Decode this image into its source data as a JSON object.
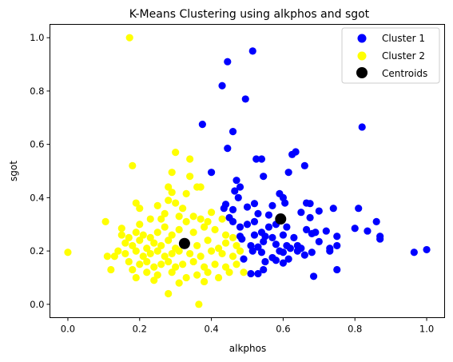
{
  "chart_data": {
    "type": "scatter",
    "title": "K-Means Clustering using alkphos and sgot",
    "xlabel": "alkphos",
    "ylabel": "sgot",
    "xlim": [
      -0.05,
      1.05
    ],
    "ylim": [
      -0.05,
      1.05
    ],
    "xticks": [
      0.0,
      0.2,
      0.4,
      0.6,
      0.8,
      1.0
    ],
    "xtick_labels": [
      "0.0",
      "0.2",
      "0.4",
      "0.6",
      "0.8",
      "1.0"
    ],
    "yticks": [
      0.0,
      0.2,
      0.4,
      0.6,
      0.8,
      1.0
    ],
    "ytick_labels": [
      "0.0",
      "0.2",
      "0.4",
      "0.6",
      "0.8",
      "1.0"
    ],
    "grid": false,
    "legend_position": "top-right",
    "series": [
      {
        "name": "Cluster 1",
        "color": "#0000ff",
        "marker": "circle",
        "points": [
          [
            0.515,
            0.95
          ],
          [
            0.445,
            0.91
          ],
          [
            0.43,
            0.82
          ],
          [
            0.495,
            0.77
          ],
          [
            0.82,
            0.665
          ],
          [
            0.375,
            0.675
          ],
          [
            0.46,
            0.648
          ],
          [
            0.445,
            0.585
          ],
          [
            0.635,
            0.572
          ],
          [
            0.625,
            0.562
          ],
          [
            0.54,
            0.545
          ],
          [
            0.525,
            0.545
          ],
          [
            0.66,
            0.52
          ],
          [
            0.4,
            0.495
          ],
          [
            0.545,
            0.48
          ],
          [
            0.615,
            0.495
          ],
          [
            0.47,
            0.465
          ],
          [
            0.48,
            0.44
          ],
          [
            0.465,
            0.425
          ],
          [
            0.475,
            0.4
          ],
          [
            0.59,
            0.415
          ],
          [
            0.6,
            0.4
          ],
          [
            0.605,
            0.38
          ],
          [
            0.665,
            0.38
          ],
          [
            0.675,
            0.378
          ],
          [
            0.44,
            0.375
          ],
          [
            0.435,
            0.36
          ],
          [
            0.46,
            0.355
          ],
          [
            0.52,
            0.378
          ],
          [
            0.5,
            0.365
          ],
          [
            0.57,
            0.37
          ],
          [
            0.74,
            0.36
          ],
          [
            0.81,
            0.36
          ],
          [
            0.7,
            0.35
          ],
          [
            0.45,
            0.325
          ],
          [
            0.46,
            0.31
          ],
          [
            0.53,
            0.34
          ],
          [
            0.56,
            0.335
          ],
          [
            0.65,
            0.345
          ],
          [
            0.72,
            0.275
          ],
          [
            0.675,
            0.325
          ],
          [
            0.48,
            0.29
          ],
          [
            0.5,
            0.3
          ],
          [
            0.52,
            0.31
          ],
          [
            0.56,
            0.29
          ],
          [
            0.58,
            0.3
          ],
          [
            0.61,
            0.29
          ],
          [
            0.665,
            0.28
          ],
          [
            0.69,
            0.27
          ],
          [
            0.8,
            0.285
          ],
          [
            0.835,
            0.275
          ],
          [
            0.86,
            0.31
          ],
          [
            0.87,
            0.255
          ],
          [
            0.87,
            0.245
          ],
          [
            0.75,
            0.255
          ],
          [
            0.48,
            0.255
          ],
          [
            0.485,
            0.245
          ],
          [
            0.52,
            0.26
          ],
          [
            0.54,
            0.27
          ],
          [
            0.55,
            0.255
          ],
          [
            0.57,
            0.25
          ],
          [
            0.6,
            0.26
          ],
          [
            0.63,
            0.25
          ],
          [
            0.68,
            0.265
          ],
          [
            0.7,
            0.235
          ],
          [
            0.51,
            0.22
          ],
          [
            0.53,
            0.215
          ],
          [
            0.545,
            0.235
          ],
          [
            0.58,
            0.225
          ],
          [
            0.61,
            0.22
          ],
          [
            0.64,
            0.22
          ],
          [
            0.65,
            0.21
          ],
          [
            0.73,
            0.21
          ],
          [
            0.73,
            0.2
          ],
          [
            0.75,
            0.22
          ],
          [
            0.515,
            0.2
          ],
          [
            0.54,
            0.195
          ],
          [
            0.57,
            0.175
          ],
          [
            0.59,
            0.2
          ],
          [
            0.6,
            0.195
          ],
          [
            0.62,
            0.21
          ],
          [
            0.66,
            0.185
          ],
          [
            0.68,
            0.195
          ],
          [
            0.49,
            0.17
          ],
          [
            0.55,
            0.16
          ],
          [
            0.58,
            0.165
          ],
          [
            0.6,
            0.155
          ],
          [
            0.615,
            0.17
          ],
          [
            0.64,
            0.2
          ],
          [
            0.51,
            0.115
          ],
          [
            0.53,
            0.115
          ],
          [
            0.545,
            0.13
          ],
          [
            0.685,
            0.105
          ],
          [
            0.75,
            0.13
          ],
          [
            0.965,
            0.195
          ],
          [
            1.0,
            0.205
          ]
        ]
      },
      {
        "name": "Cluster 2",
        "color": "#ffff00",
        "marker": "circle",
        "points": [
          [
            0.172,
            1.0
          ],
          [
            0.3,
            0.57
          ],
          [
            0.34,
            0.545
          ],
          [
            0.18,
            0.52
          ],
          [
            0.29,
            0.495
          ],
          [
            0.34,
            0.48
          ],
          [
            0.28,
            0.44
          ],
          [
            0.36,
            0.44
          ],
          [
            0.37,
            0.44
          ],
          [
            0.29,
            0.42
          ],
          [
            0.33,
            0.415
          ],
          [
            0.19,
            0.38
          ],
          [
            0.2,
            0.36
          ],
          [
            0.25,
            0.37
          ],
          [
            0.28,
            0.39
          ],
          [
            0.3,
            0.38
          ],
          [
            0.32,
            0.36
          ],
          [
            0.4,
            0.345
          ],
          [
            0.105,
            0.31
          ],
          [
            0.15,
            0.285
          ],
          [
            0.2,
            0.3
          ],
          [
            0.23,
            0.32
          ],
          [
            0.26,
            0.32
          ],
          [
            0.27,
            0.34
          ],
          [
            0.31,
            0.33
          ],
          [
            0.33,
            0.31
          ],
          [
            0.35,
            0.33
          ],
          [
            0.37,
            0.32
          ],
          [
            0.39,
            0.31
          ],
          [
            0.43,
            0.32
          ],
          [
            0.15,
            0.26
          ],
          [
            0.17,
            0.25
          ],
          [
            0.19,
            0.27
          ],
          [
            0.21,
            0.26
          ],
          [
            0.23,
            0.25
          ],
          [
            0.25,
            0.27
          ],
          [
            0.27,
            0.29
          ],
          [
            0.29,
            0.26
          ],
          [
            0.31,
            0.28
          ],
          [
            0.35,
            0.27
          ],
          [
            0.38,
            0.29
          ],
          [
            0.41,
            0.28
          ],
          [
            0.44,
            0.26
          ],
          [
            0.46,
            0.25
          ],
          [
            0.16,
            0.23
          ],
          [
            0.18,
            0.22
          ],
          [
            0.2,
            0.24
          ],
          [
            0.22,
            0.21
          ],
          [
            0.24,
            0.23
          ],
          [
            0.26,
            0.22
          ],
          [
            0.28,
            0.24
          ],
          [
            0.3,
            0.21
          ],
          [
            0.33,
            0.23
          ],
          [
            0.36,
            0.22
          ],
          [
            0.39,
            0.24
          ],
          [
            0.42,
            0.21
          ],
          [
            0.44,
            0.23
          ],
          [
            0.47,
            0.22
          ],
          [
            0.14,
            0.2
          ],
          [
            0.16,
            0.19
          ],
          [
            0.19,
            0.2
          ],
          [
            0.21,
            0.18
          ],
          [
            0.23,
            0.19
          ],
          [
            0.25,
            0.2
          ],
          [
            0.27,
            0.18
          ],
          [
            0.29,
            0.19
          ],
          [
            0.31,
            0.2
          ],
          [
            0.34,
            0.19
          ],
          [
            0.37,
            0.18
          ],
          [
            0.4,
            0.2
          ],
          [
            0.43,
            0.19
          ],
          [
            0.46,
            0.18
          ],
          [
            0.48,
            0.2
          ],
          [
            0.11,
            0.18
          ],
          [
            0.13,
            0.18
          ],
          [
            0.17,
            0.16
          ],
          [
            0.2,
            0.15
          ],
          [
            0.22,
            0.16
          ],
          [
            0.24,
            0.14
          ],
          [
            0.26,
            0.15
          ],
          [
            0.28,
            0.16
          ],
          [
            0.3,
            0.14
          ],
          [
            0.32,
            0.15
          ],
          [
            0.35,
            0.16
          ],
          [
            0.38,
            0.14
          ],
          [
            0.41,
            0.15
          ],
          [
            0.44,
            0.14
          ],
          [
            0.47,
            0.15
          ],
          [
            0.12,
            0.13
          ],
          [
            0.18,
            0.13
          ],
          [
            0.22,
            0.12
          ],
          [
            0.25,
            0.11
          ],
          [
            0.29,
            0.12
          ],
          [
            0.33,
            0.1
          ],
          [
            0.36,
            0.11
          ],
          [
            0.39,
            0.12
          ],
          [
            0.42,
            0.1
          ],
          [
            0.45,
            0.12
          ],
          [
            0.49,
            0.12
          ],
          [
            0.19,
            0.1
          ],
          [
            0.24,
            0.09
          ],
          [
            0.31,
            0.08
          ],
          [
            0.38,
            0.085
          ],
          [
            0.0,
            0.195
          ],
          [
            0.28,
            0.04
          ],
          [
            0.365,
            0.0
          ]
        ]
      },
      {
        "name": "Centroids",
        "color": "#000000",
        "marker": "circle-large",
        "points": [
          [
            0.325,
            0.228
          ],
          [
            0.593,
            0.32
          ]
        ]
      }
    ]
  }
}
